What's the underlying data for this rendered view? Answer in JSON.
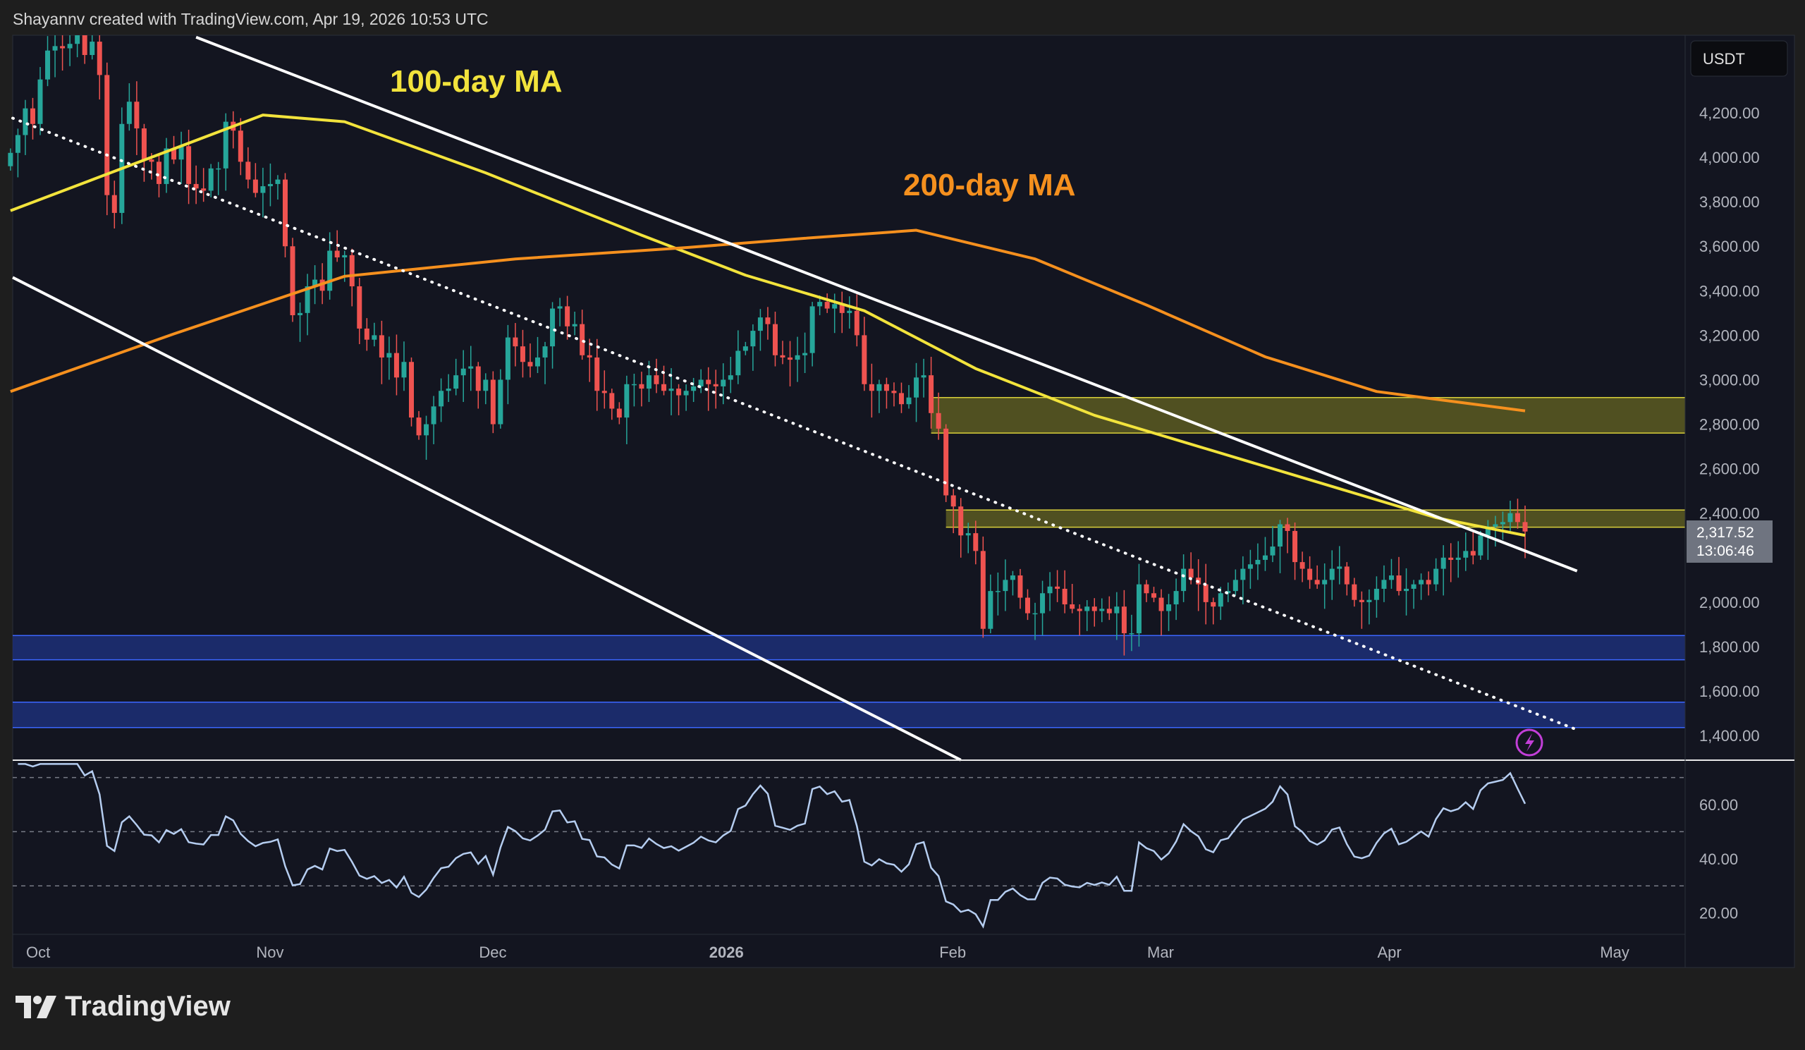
{
  "header": {
    "credit": "Shayannv created with TradingView.com, Apr 19, 2026 10:53 UTC"
  },
  "footer": {
    "brand": "TradingView"
  },
  "colors": {
    "up": "#26a69a",
    "down": "#ef5350",
    "ma100": "#f2e33c",
    "ma200": "#f5901e",
    "zone_yellow": "#8a8a2e",
    "zone_blue": "#1f3fa8",
    "background": "#131520"
  },
  "chart_data": {
    "type": "candlestick",
    "currency": "USDT",
    "y_ticks": [
      "4,200.00",
      "4,000.00",
      "3,800.00",
      "3,600.00",
      "3,400.00",
      "3,200.00",
      "3,000.00",
      "2,800.00",
      "2,600.00",
      "2,400.00",
      "2,000.00",
      "1,800.00",
      "1,600.00",
      "1,400.00"
    ],
    "y_tick_values": [
      4200,
      4000,
      3800,
      3600,
      3400,
      3200,
      3000,
      2800,
      2600,
      2400,
      2000,
      1800,
      1600,
      1400
    ],
    "ylim": [
      1290,
      4550
    ],
    "x_ticks": [
      {
        "label": "Oct",
        "date": "2025-10-01"
      },
      {
        "label": "Nov",
        "date": "2025-11-01"
      },
      {
        "label": "Dec",
        "date": "2025-12-01"
      },
      {
        "label": "2026",
        "date": "2026-01-01",
        "bold": true
      },
      {
        "label": "Feb",
        "date": "2026-02-01"
      },
      {
        "label": "Mar",
        "date": "2026-03-01"
      },
      {
        "label": "Apr",
        "date": "2026-04-01"
      },
      {
        "label": "May",
        "date": "2026-05-01"
      }
    ],
    "start_date": "2025-09-27",
    "daily_close": [
      4020,
      4100,
      4220,
      4150,
      4350,
      4480,
      4500,
      4490,
      4510,
      4690,
      4460,
      4520,
      4370,
      3830,
      3750,
      4150,
      4250,
      4130,
      3990,
      3980,
      3880,
      4040,
      3990,
      4050,
      3880,
      3860,
      3850,
      3950,
      3950,
      4160,
      4120,
      3980,
      3900,
      3840,
      3870,
      3880,
      3900,
      3600,
      3290,
      3300,
      3420,
      3450,
      3400,
      3580,
      3550,
      3560,
      3420,
      3230,
      3180,
      3200,
      3100,
      3120,
      3010,
      3080,
      2830,
      2750,
      2800,
      2880,
      2950,
      2960,
      3020,
      3050,
      3060,
      2950,
      3000,
      2800,
      3000,
      3190,
      3150,
      3080,
      3060,
      3100,
      3150,
      3320,
      3330,
      3240,
      3250,
      3110,
      3100,
      2950,
      2940,
      2870,
      2830,
      2980,
      2980,
      2960,
      3020,
      2980,
      2950,
      2960,
      2930,
      2950,
      2970,
      3000,
      2980,
      2970,
      3000,
      3020,
      3130,
      3150,
      3220,
      3280,
      3250,
      3110,
      3100,
      3090,
      3110,
      3120,
      3330,
      3350,
      3320,
      3340,
      3300,
      3310,
      3200,
      2980,
      2950,
      2980,
      2950,
      2940,
      2890,
      2920,
      3010,
      3020,
      2850,
      2780,
      2480,
      2430,
      2300,
      2310,
      2230,
      1880,
      2050,
      2050,
      2100,
      2120,
      2020,
      1950,
      1950,
      2040,
      2070,
      2060,
      1990,
      1970,
      1960,
      1980,
      1960,
      1970,
      1950,
      1980,
      1860,
      1860,
      2080,
      2040,
      2020,
      1960,
      1990,
      2050,
      2150,
      2110,
      2080,
      2000,
      1980,
      2040,
      2050,
      2100,
      2150,
      2170,
      2190,
      2210,
      2250,
      2350,
      2320,
      2180,
      2150,
      2100,
      2080,
      2100,
      2150,
      2160,
      2080,
      2010,
      2000,
      2010,
      2060,
      2100,
      2120,
      2050,
      2060,
      2080,
      2100,
      2080,
      2150,
      2200,
      2190,
      2200,
      2230,
      2210,
      2300,
      2340,
      2350,
      2360,
      2400,
      2360,
      2317.52
    ],
    "last_price": "2,317.52",
    "countdown": "13:06:46",
    "moving_averages": [
      {
        "name": "100-day MA",
        "color": "#f2e33c",
        "points": [
          [
            "2025-09-27",
            3760
          ],
          [
            "2025-10-31",
            4190
          ],
          [
            "2025-11-11",
            4160
          ],
          [
            "2025-11-30",
            3930
          ],
          [
            "2025-12-21",
            3650
          ],
          [
            "2026-01-04",
            3470
          ],
          [
            "2026-01-20",
            3310
          ],
          [
            "2026-02-04",
            3050
          ],
          [
            "2026-02-20",
            2840
          ],
          [
            "2026-03-07",
            2690
          ],
          [
            "2026-03-23",
            2530
          ],
          [
            "2026-04-07",
            2380
          ],
          [
            "2026-04-19",
            2300
          ]
        ]
      },
      {
        "name": "200-day MA",
        "color": "#f5901e",
        "points": [
          [
            "2025-09-27",
            2947
          ],
          [
            "2025-10-19",
            3206
          ],
          [
            "2025-11-11",
            3465
          ],
          [
            "2025-12-04",
            3543
          ],
          [
            "2025-12-27",
            3594
          ],
          [
            "2026-01-12",
            3636
          ],
          [
            "2026-01-27",
            3672
          ],
          [
            "2026-02-12",
            3543
          ],
          [
            "2026-02-27",
            3336
          ],
          [
            "2026-03-15",
            3103
          ],
          [
            "2026-03-30",
            2947
          ],
          [
            "2026-04-19",
            2860
          ]
        ]
      }
    ],
    "trendlines": [
      {
        "kind": "channel-upper",
        "style": "solid",
        "from": [
          "2025-10-22",
          4540
        ],
        "to": [
          "2026-04-26",
          2140
        ]
      },
      {
        "kind": "channel-lower",
        "style": "solid",
        "from": [
          "2025-09-27",
          3465
        ],
        "to": [
          "2026-02-02",
          1290
        ]
      },
      {
        "kind": "channel-mid",
        "style": "dotted",
        "from": [
          "2025-09-27",
          4180
        ],
        "to": [
          "2026-04-26",
          1426
        ]
      }
    ],
    "zones": [
      {
        "color": "yellow",
        "from_date": "2026-01-29",
        "low": 2760,
        "high": 2920
      },
      {
        "color": "yellow",
        "from_date": "2026-01-31",
        "low": 2337,
        "high": 2414
      },
      {
        "color": "blue",
        "from_date": null,
        "low": 1741,
        "high": 1850
      },
      {
        "color": "blue",
        "from_date": null,
        "low": 1436,
        "high": 1550
      }
    ],
    "annotations": [
      {
        "text": "100-day MA",
        "color": "#f2e33c"
      },
      {
        "text": "200-day MA",
        "color": "#f5901e"
      }
    ],
    "rsi": {
      "period": 14,
      "ticks": [
        "60.00",
        "40.00",
        "20.00"
      ],
      "tick_values": [
        60,
        40,
        20
      ],
      "bands": [
        70,
        50,
        30
      ],
      "color": "#b5cdf0"
    }
  }
}
